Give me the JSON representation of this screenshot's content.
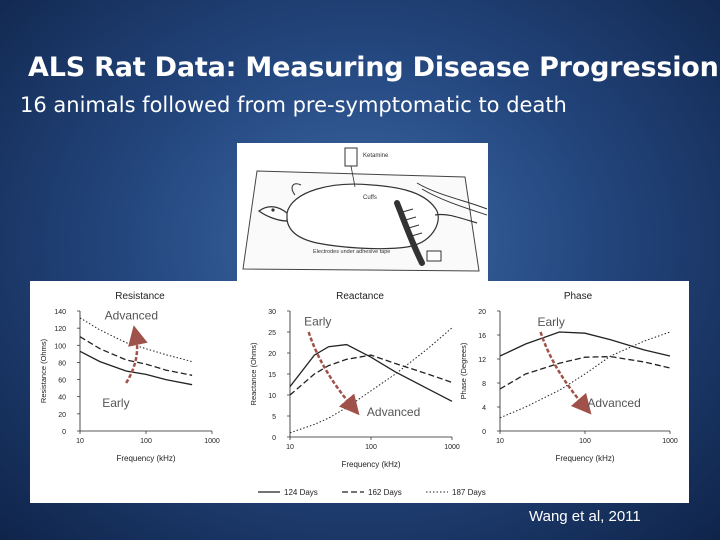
{
  "slide": {
    "title": "ALS Rat Data:  Measuring Disease Progression",
    "subtitle": "16 animals followed from pre-symptomatic to death",
    "citation": "Wang et al, 2011"
  },
  "setup_illustration": {
    "labels": [
      "Ketamine",
      "Cuffs",
      "Electrodes under adhesive tape"
    ]
  },
  "legend": {
    "entries": [
      {
        "name": "124 Days",
        "style": "solid"
      },
      {
        "name": "162 Days",
        "style": "dashed"
      },
      {
        "name": "187 Days",
        "style": "dotted"
      }
    ],
    "placement": "bottom-center"
  },
  "colors": {
    "background": "#24477f",
    "arrow": "#a0524a",
    "annotation_text": "#555555",
    "line": "#222222"
  },
  "chart_data": [
    {
      "type": "line",
      "title": "Resistance",
      "xlabel": "Frequency (kHz)",
      "ylabel": "Resistance (Ohms)",
      "x_scale": "log",
      "xlim": [
        10,
        1000
      ],
      "ylim": [
        0,
        140
      ],
      "xticks": [
        "10",
        "100",
        "1000"
      ],
      "yticks": [
        "0",
        "20",
        "40",
        "60",
        "80",
        "100",
        "120",
        "140"
      ],
      "x": [
        10,
        20,
        50,
        100,
        200,
        500
      ],
      "series": [
        {
          "name": "124 Days",
          "values": [
            93,
            81,
            70,
            66,
            60,
            54
          ]
        },
        {
          "name": "162 Days",
          "values": [
            110,
            96,
            83,
            78,
            71,
            65
          ]
        },
        {
          "name": "187 Days",
          "values": [
            132,
            118,
            103,
            96,
            89,
            81
          ]
        }
      ],
      "annotations": [
        {
          "text": "Advanced",
          "x": 60,
          "y": 130
        },
        {
          "text": "Early",
          "x": 35,
          "y": 28
        }
      ],
      "arrow": {
        "from": [
          50,
          56
        ],
        "to": [
          70,
          112
        ]
      }
    },
    {
      "type": "line",
      "title": "Reactance",
      "xlabel": "Frequency (kHz)",
      "ylabel": "Reactance (Ohms)",
      "x_scale": "log",
      "xlim": [
        10,
        1000
      ],
      "ylim": [
        0,
        30
      ],
      "xticks": [
        "10",
        "100",
        "1000"
      ],
      "yticks": [
        "0",
        "5",
        "10",
        "15",
        "20",
        "25",
        "30"
      ],
      "x": [
        10,
        20,
        30,
        50,
        100,
        200,
        500,
        1000
      ],
      "series": [
        {
          "name": "124 Days",
          "values": [
            12,
            19.5,
            21.5,
            22,
            19,
            15.5,
            11.5,
            8.5
          ]
        },
        {
          "name": "162 Days",
          "values": [
            10,
            15,
            17,
            18.5,
            19.5,
            17.5,
            15,
            13
          ]
        },
        {
          "name": "187 Days",
          "values": [
            1,
            3,
            4.5,
            7,
            11,
            15,
            21,
            26
          ]
        }
      ],
      "annotations": [
        {
          "text": "Early",
          "x": 22,
          "y": 26.5
        },
        {
          "text": "Advanced",
          "x": 190,
          "y": 5
        }
      ],
      "arrow": {
        "from": [
          17,
          25
        ],
        "to": [
          60,
          7
        ]
      }
    },
    {
      "type": "line",
      "title": "Phase",
      "xlabel": "Frequency (kHz)",
      "ylabel": "Phase (Degrees)",
      "x_scale": "log",
      "xlim": [
        10,
        1000
      ],
      "ylim": [
        0,
        20
      ],
      "xticks": [
        "10",
        "100",
        "1000"
      ],
      "yticks": [
        "0",
        "4",
        "8",
        "12",
        "16",
        "20"
      ],
      "x": [
        10,
        20,
        50,
        100,
        200,
        500,
        1000
      ],
      "series": [
        {
          "name": "124 Days",
          "values": [
            12.5,
            14.5,
            16.5,
            16.3,
            15.2,
            13.5,
            12.5
          ]
        },
        {
          "name": "162 Days",
          "values": [
            7,
            9.5,
            11.3,
            12.3,
            12.4,
            11.5,
            10.5
          ]
        },
        {
          "name": "187 Days",
          "values": [
            2.2,
            4,
            6.8,
            9.5,
            12.5,
            15,
            16.5
          ]
        }
      ],
      "annotations": [
        {
          "text": "Early",
          "x": 40,
          "y": 17.5
        },
        {
          "text": "Advanced",
          "x": 220,
          "y": 4
        }
      ],
      "arrow": {
        "from": [
          30,
          16.5
        ],
        "to": [
          100,
          4
        ]
      }
    }
  ]
}
